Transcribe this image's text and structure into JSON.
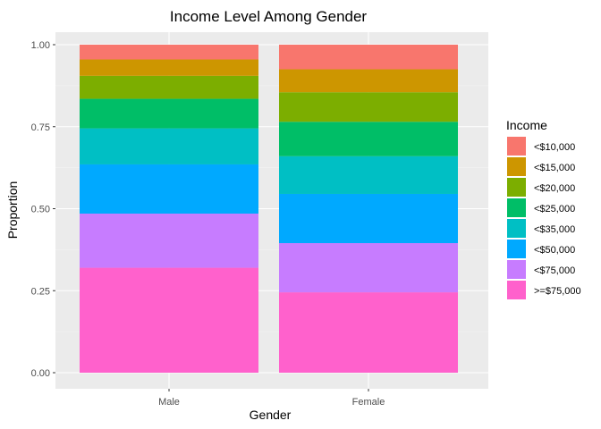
{
  "chart_data": {
    "type": "bar",
    "stacked": true,
    "title": "Income Level Among Gender",
    "xlabel": "Gender",
    "ylabel": "Proportion",
    "ylim": [
      0,
      1
    ],
    "yticks": [
      "0.00",
      "0.25",
      "0.50",
      "0.75",
      "1.00"
    ],
    "grid": true,
    "legend_position": "right",
    "legend_title": "Income",
    "categories": [
      "Male",
      "Female"
    ],
    "series": [
      {
        "name": "<$10,000",
        "color": "#F8766D",
        "values": [
          0.045,
          0.075
        ]
      },
      {
        "name": "<$15,000",
        "color": "#CD9600",
        "values": [
          0.05,
          0.07
        ]
      },
      {
        "name": "<$20,000",
        "color": "#7CAE00",
        "values": [
          0.07,
          0.09
        ]
      },
      {
        "name": "<$25,000",
        "color": "#00BE67",
        "values": [
          0.09,
          0.105
        ]
      },
      {
        "name": "<$35,000",
        "color": "#00BFC4",
        "values": [
          0.11,
          0.115
        ]
      },
      {
        "name": "<$50,000",
        "color": "#00A9FF",
        "values": [
          0.15,
          0.15
        ]
      },
      {
        "name": "<$75,000",
        "color": "#C77CFF",
        "values": [
          0.165,
          0.15
        ]
      },
      {
        "name": ">=$75,000",
        "color": "#FF61CC",
        "values": [
          0.32,
          0.245
        ]
      }
    ]
  }
}
